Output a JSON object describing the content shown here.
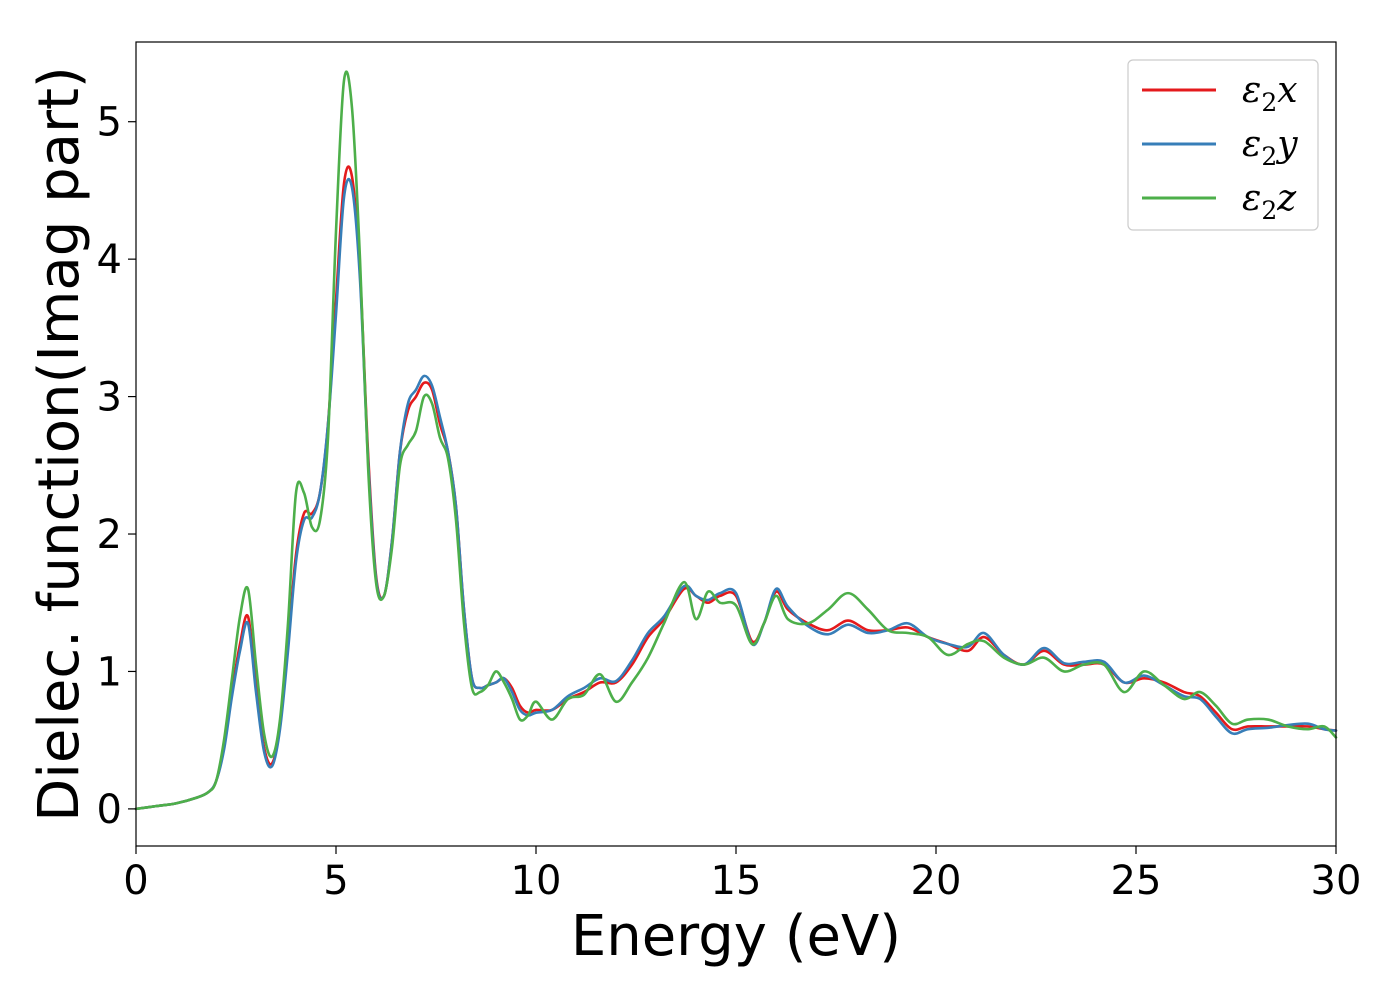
{
  "chart_data": {
    "type": "line",
    "title": "",
    "xlabel": "Energy (eV)",
    "ylabel": "Dielec. function(Imag part)",
    "xlim": [
      0,
      30
    ],
    "ylim": [
      -0.27,
      5.58
    ],
    "xticks": [
      0,
      5,
      10,
      15,
      20,
      25,
      30
    ],
    "yticks": [
      0,
      1,
      2,
      3,
      4,
      5
    ],
    "grid": false,
    "legend_position": "top-right",
    "series": [
      {
        "name": "ε2x",
        "symbol": "ε",
        "subscript": "2",
        "axis": "x",
        "color": "#e41a1c",
        "x": [
          0,
          0.5,
          1,
          1.5,
          1.8,
          2.0,
          2.2,
          2.4,
          2.6,
          2.8,
          3.0,
          3.2,
          3.4,
          3.6,
          3.8,
          4.0,
          4.2,
          4.4,
          4.6,
          4.8,
          5.0,
          5.2,
          5.4,
          5.6,
          5.8,
          6.0,
          6.2,
          6.4,
          6.6,
          6.8,
          7.0,
          7.2,
          7.4,
          7.6,
          7.8,
          8.0,
          8.2,
          8.4,
          8.6,
          8.8,
          9.0,
          9.2,
          9.4,
          9.6,
          9.8,
          10.0,
          10.4,
          10.8,
          11.2,
          11.6,
          12.0,
          12.4,
          12.8,
          13.2,
          13.7,
          14.0,
          14.3,
          14.6,
          15.0,
          15.4,
          15.7,
          16.0,
          16.3,
          16.8,
          17.3,
          17.8,
          18.3,
          18.8,
          19.3,
          19.8,
          20.3,
          20.8,
          21.2,
          21.7,
          22.2,
          22.7,
          23.2,
          23.7,
          24.2,
          24.7,
          25.2,
          25.7,
          26.2,
          26.6,
          27.0,
          27.4,
          27.8,
          28.3,
          28.8,
          29.3,
          29.7,
          30.0
        ],
        "y": [
          0,
          0.02,
          0.04,
          0.08,
          0.12,
          0.2,
          0.45,
          0.85,
          1.2,
          1.4,
          0.9,
          0.45,
          0.33,
          0.6,
          1.2,
          1.85,
          2.15,
          2.15,
          2.3,
          2.8,
          3.7,
          4.55,
          4.6,
          3.9,
          2.6,
          1.7,
          1.55,
          1.95,
          2.6,
          2.9,
          3.0,
          3.1,
          3.05,
          2.8,
          2.6,
          2.2,
          1.45,
          0.95,
          0.88,
          0.9,
          0.92,
          0.95,
          0.88,
          0.75,
          0.7,
          0.72,
          0.72,
          0.8,
          0.85,
          0.92,
          0.92,
          1.05,
          1.25,
          1.38,
          1.6,
          1.55,
          1.5,
          1.55,
          1.55,
          1.22,
          1.35,
          1.58,
          1.45,
          1.35,
          1.3,
          1.37,
          1.3,
          1.3,
          1.32,
          1.25,
          1.2,
          1.15,
          1.25,
          1.12,
          1.05,
          1.15,
          1.05,
          1.05,
          1.05,
          0.92,
          0.95,
          0.92,
          0.85,
          0.82,
          0.7,
          0.58,
          0.6,
          0.6,
          0.6,
          0.6,
          0.58,
          0.57
        ]
      },
      {
        "name": "ε2y",
        "symbol": "ε",
        "subscript": "2",
        "axis": "y",
        "color": "#377eb8",
        "x": [
          0,
          0.5,
          1,
          1.5,
          1.8,
          2.0,
          2.2,
          2.4,
          2.6,
          2.8,
          3.0,
          3.2,
          3.4,
          3.6,
          3.8,
          4.0,
          4.2,
          4.4,
          4.6,
          4.8,
          5.0,
          5.2,
          5.4,
          5.6,
          5.8,
          6.0,
          6.2,
          6.4,
          6.6,
          6.8,
          7.0,
          7.2,
          7.4,
          7.6,
          7.8,
          8.0,
          8.2,
          8.4,
          8.6,
          8.8,
          9.0,
          9.2,
          9.4,
          9.6,
          9.8,
          10.0,
          10.4,
          10.8,
          11.2,
          11.6,
          12.0,
          12.4,
          12.8,
          13.2,
          13.7,
          14.0,
          14.3,
          14.6,
          15.0,
          15.4,
          15.7,
          16.0,
          16.3,
          16.8,
          17.3,
          17.8,
          18.3,
          18.8,
          19.3,
          19.8,
          20.3,
          20.8,
          21.2,
          21.7,
          22.2,
          22.7,
          23.2,
          23.7,
          24.2,
          24.7,
          25.2,
          25.7,
          26.2,
          26.6,
          27.0,
          27.4,
          27.8,
          28.3,
          28.8,
          29.3,
          29.7,
          30.0
        ],
        "y": [
          0,
          0.02,
          0.04,
          0.08,
          0.12,
          0.2,
          0.43,
          0.82,
          1.15,
          1.35,
          0.85,
          0.42,
          0.31,
          0.58,
          1.15,
          1.8,
          2.1,
          2.12,
          2.3,
          2.8,
          3.6,
          4.45,
          4.52,
          3.85,
          2.55,
          1.68,
          1.55,
          1.95,
          2.6,
          2.95,
          3.05,
          3.15,
          3.08,
          2.85,
          2.6,
          2.2,
          1.45,
          0.95,
          0.88,
          0.9,
          0.92,
          0.95,
          0.85,
          0.72,
          0.68,
          0.7,
          0.72,
          0.82,
          0.88,
          0.95,
          0.93,
          1.08,
          1.28,
          1.4,
          1.62,
          1.55,
          1.52,
          1.57,
          1.57,
          1.2,
          1.35,
          1.6,
          1.47,
          1.33,
          1.27,
          1.34,
          1.28,
          1.3,
          1.35,
          1.25,
          1.2,
          1.18,
          1.28,
          1.12,
          1.05,
          1.17,
          1.06,
          1.07,
          1.07,
          0.92,
          0.97,
          0.9,
          0.82,
          0.8,
          0.67,
          0.55,
          0.58,
          0.59,
          0.61,
          0.62,
          0.58,
          0.57
        ]
      },
      {
        "name": "ε2z",
        "symbol": "ε",
        "subscript": "2",
        "axis": "z",
        "color": "#4daf4a",
        "x": [
          0,
          0.5,
          1,
          1.5,
          1.8,
          2.0,
          2.2,
          2.4,
          2.6,
          2.8,
          3.0,
          3.2,
          3.4,
          3.6,
          3.8,
          4.0,
          4.2,
          4.4,
          4.6,
          4.8,
          5.0,
          5.2,
          5.4,
          5.6,
          5.8,
          6.0,
          6.2,
          6.4,
          6.6,
          6.8,
          7.0,
          7.2,
          7.4,
          7.6,
          7.8,
          8.0,
          8.2,
          8.4,
          8.6,
          8.8,
          9.0,
          9.2,
          9.4,
          9.6,
          9.8,
          10.0,
          10.4,
          10.8,
          11.2,
          11.6,
          12.0,
          12.4,
          12.8,
          13.2,
          13.7,
          14.0,
          14.3,
          14.6,
          15.0,
          15.4,
          15.7,
          16.0,
          16.3,
          16.8,
          17.3,
          17.8,
          18.3,
          18.8,
          19.3,
          19.8,
          20.3,
          20.8,
          21.2,
          21.7,
          22.2,
          22.7,
          23.2,
          23.7,
          24.2,
          24.7,
          25.2,
          25.7,
          26.2,
          26.6,
          27.0,
          27.4,
          27.8,
          28.3,
          28.8,
          29.3,
          29.7,
          30.0
        ],
        "y": [
          0,
          0.02,
          0.04,
          0.08,
          0.12,
          0.2,
          0.5,
          0.95,
          1.4,
          1.6,
          1.05,
          0.55,
          0.38,
          0.65,
          1.35,
          2.3,
          2.3,
          2.05,
          2.1,
          2.7,
          4.2,
          5.3,
          5.1,
          4.0,
          2.5,
          1.65,
          1.55,
          1.9,
          2.5,
          2.65,
          2.75,
          3.0,
          2.95,
          2.7,
          2.55,
          2.1,
          1.35,
          0.88,
          0.85,
          0.9,
          1.0,
          0.92,
          0.8,
          0.65,
          0.68,
          0.78,
          0.65,
          0.8,
          0.83,
          0.98,
          0.78,
          0.92,
          1.1,
          1.35,
          1.65,
          1.38,
          1.58,
          1.5,
          1.48,
          1.2,
          1.35,
          1.55,
          1.38,
          1.35,
          1.45,
          1.57,
          1.45,
          1.3,
          1.28,
          1.25,
          1.12,
          1.2,
          1.22,
          1.1,
          1.05,
          1.1,
          1.0,
          1.05,
          1.05,
          0.85,
          1.0,
          0.9,
          0.8,
          0.85,
          0.75,
          0.62,
          0.65,
          0.65,
          0.6,
          0.58,
          0.6,
          0.52
        ]
      }
    ]
  }
}
